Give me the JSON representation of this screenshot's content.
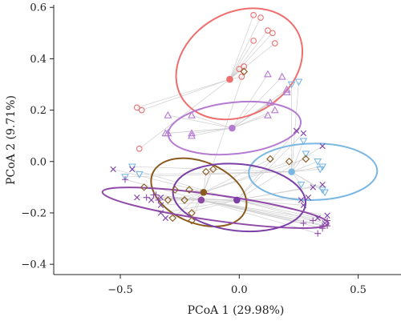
{
  "chart_data": {
    "type": "scatter",
    "title": "",
    "xlabel": "PCoA 1 (29.98%)",
    "ylabel": "PCoA 2 (9.71%)",
    "xlim": [
      -0.78,
      0.68
    ],
    "ylim": [
      -0.44,
      0.61
    ],
    "xticks": [
      -0.5,
      0.0,
      0.5
    ],
    "xtick_labels": [
      "−0.5",
      "0.0",
      "0.5"
    ],
    "yticks": [
      -0.4,
      -0.2,
      0.0,
      0.2,
      0.4,
      0.6
    ],
    "ytick_labels": [
      "−0.4",
      "−0.2",
      "0.0",
      "0.2",
      "0.4",
      "0.6"
    ],
    "grid": false,
    "legend": "none",
    "series": [
      {
        "marker": "circle",
        "color": "#ee6e6e",
        "centroid": [
          -0.04,
          0.32
        ],
        "ellipse": {
          "center": [
            0.0,
            0.38
          ],
          "rx": 0.28,
          "ry": 0.2,
          "angle_deg": 30
        },
        "points": [
          [
            0.06,
            0.57
          ],
          [
            0.09,
            0.56
          ],
          [
            0.12,
            0.51
          ],
          [
            0.14,
            0.5
          ],
          [
            0.15,
            0.46
          ],
          [
            0.06,
            0.47
          ],
          [
            0.02,
            0.37
          ],
          [
            0.0,
            0.36
          ],
          [
            0.01,
            0.33
          ],
          [
            -0.43,
            0.21
          ],
          [
            -0.41,
            0.2
          ],
          [
            -0.42,
            0.05
          ]
        ]
      },
      {
        "marker": "triangle-up",
        "color": "#b57ad1",
        "centroid": [
          -0.03,
          0.13
        ],
        "ellipse": {
          "center": [
            -0.02,
            0.13
          ],
          "rx": 0.28,
          "ry": 0.1,
          "angle_deg": 6
        },
        "points": [
          [
            0.12,
            0.34
          ],
          [
            0.18,
            0.33
          ],
          [
            0.2,
            0.28
          ],
          [
            0.2,
            0.27
          ],
          [
            0.13,
            0.23
          ],
          [
            -0.2,
            0.18
          ],
          [
            -0.3,
            0.18
          ],
          [
            -0.2,
            0.11
          ],
          [
            -0.3,
            0.11
          ],
          [
            -0.31,
            0.11
          ],
          [
            -0.2,
            0.1
          ],
          [
            0.15,
            0.2
          ],
          [
            0.12,
            0.18
          ]
        ]
      },
      {
        "marker": "triangle-down",
        "color": "#7ab7e3",
        "centroid": [
          0.22,
          -0.04
        ],
        "ellipse": {
          "center": [
            0.31,
            -0.04
          ],
          "rx": 0.27,
          "ry": 0.11,
          "angle_deg": 1
        },
        "points": [
          [
            0.22,
            0.3
          ],
          [
            0.25,
            0.31
          ],
          [
            0.27,
            0.08
          ],
          [
            0.28,
            0.03
          ],
          [
            0.33,
            0.0
          ],
          [
            0.35,
            -0.02
          ],
          [
            0.34,
            -0.03
          ],
          [
            0.26,
            -0.09
          ],
          [
            0.35,
            -0.11
          ],
          [
            0.36,
            -0.12
          ],
          [
            -0.48,
            -0.06
          ],
          [
            -0.42,
            -0.05
          ],
          [
            -0.45,
            -0.02
          ]
        ]
      },
      {
        "marker": "diamond",
        "color": "#8b5a1e",
        "centroid": [
          -0.15,
          -0.12
        ],
        "ellipse": {
          "center": [
            -0.17,
            -0.12
          ],
          "rx": 0.21,
          "ry": 0.12,
          "angle_deg": -22
        },
        "points": [
          [
            0.02,
            0.35
          ],
          [
            0.21,
            0.0
          ],
          [
            0.28,
            0.01
          ],
          [
            0.13,
            0.01
          ],
          [
            -0.14,
            -0.04
          ],
          [
            -0.11,
            -0.03
          ],
          [
            -0.4,
            -0.1
          ],
          [
            -0.3,
            -0.15
          ],
          [
            -0.21,
            -0.11
          ],
          [
            -0.27,
            -0.11
          ],
          [
            -0.23,
            -0.15
          ],
          [
            -0.2,
            -0.2
          ],
          [
            -0.28,
            -0.22
          ],
          [
            -0.2,
            -0.23
          ]
        ]
      },
      {
        "marker": "x",
        "color": "#7b3fa8",
        "centroid": [
          -0.01,
          -0.15
        ],
        "ellipse": {
          "center": [
            0.0,
            -0.14
          ],
          "rx": 0.28,
          "ry": 0.13,
          "angle_deg": -6
        },
        "points": [
          [
            0.24,
            0.12
          ],
          [
            0.27,
            0.11
          ],
          [
            0.35,
            0.06
          ],
          [
            0.35,
            -0.09
          ],
          [
            0.31,
            -0.1
          ],
          [
            0.29,
            -0.14
          ],
          [
            0.26,
            -0.15
          ],
          [
            0.27,
            -0.17
          ],
          [
            0.37,
            -0.21
          ],
          [
            0.33,
            -0.22
          ],
          [
            0.36,
            -0.24
          ],
          [
            -0.37,
            -0.15
          ],
          [
            -0.33,
            -0.14
          ],
          [
            -0.43,
            -0.14
          ],
          [
            -0.33,
            -0.17
          ],
          [
            -0.33,
            -0.2
          ],
          [
            -0.31,
            -0.22
          ],
          [
            -0.53,
            -0.03
          ],
          [
            -0.45,
            -0.03
          ]
        ]
      },
      {
        "marker": "plus",
        "color": "#8f4aa8",
        "centroid": [
          -0.16,
          -0.15
        ],
        "ellipse": {
          "center": [
            -0.1,
            -0.18
          ],
          "rx": 0.48,
          "ry": 0.05,
          "angle_deg": -8
        },
        "points": [
          [
            0.27,
            -0.24
          ],
          [
            0.31,
            -0.23
          ],
          [
            0.35,
            -0.25
          ],
          [
            0.37,
            -0.25
          ],
          [
            0.35,
            -0.26
          ],
          [
            0.33,
            -0.28
          ],
          [
            0.37,
            -0.23
          ],
          [
            -0.39,
            -0.14
          ],
          [
            -0.36,
            -0.13
          ],
          [
            -0.35,
            -0.13
          ],
          [
            -0.34,
            -0.15
          ],
          [
            -0.48,
            -0.07
          ]
        ]
      }
    ]
  }
}
